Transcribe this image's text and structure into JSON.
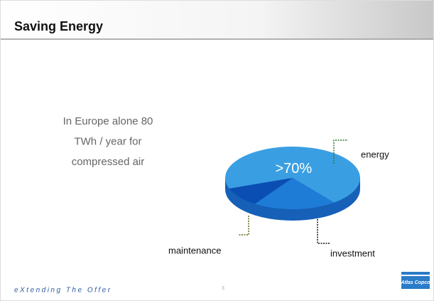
{
  "slide": {
    "title": "Saving Energy",
    "body": [
      "In Europe alone 80",
      "TWh / year for",
      "compressed air"
    ]
  },
  "chart_data": {
    "type": "pie",
    "categories": [
      "energy",
      "investment",
      "maintenance"
    ],
    "values": [
      70,
      20,
      10
    ],
    "value_labels": [
      ">70%",
      null,
      null
    ],
    "colors": [
      "#3a9fe2",
      "#1f7cd6",
      "#0b4eb3"
    ]
  },
  "footer": {
    "tagline": "eXtending The Offer",
    "page_number": "3",
    "logo": "Atlas Copco"
  }
}
